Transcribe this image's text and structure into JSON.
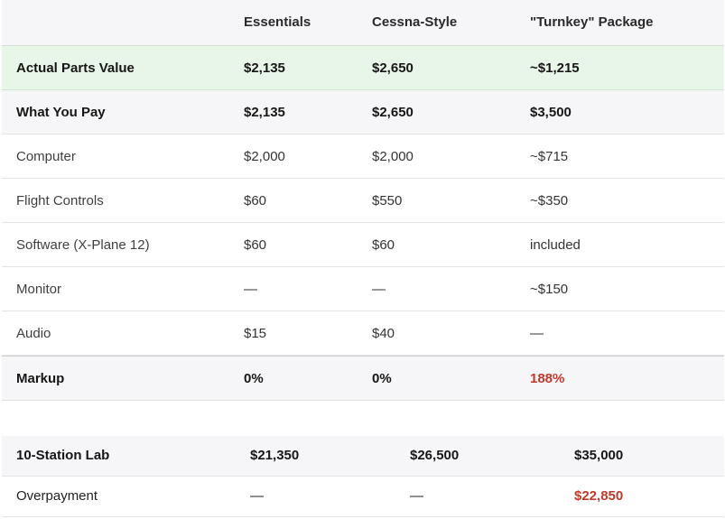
{
  "table1": {
    "headers": [
      "",
      "Essentials",
      "Cessna-Style",
      "\"Turnkey\" Package"
    ],
    "rows": [
      [
        "Actual Parts Value",
        "$2,135",
        "$2,650",
        "~$1,215"
      ],
      [
        "What You Pay",
        "$2,135",
        "$2,650",
        "$3,500"
      ],
      [
        "Computer",
        "$2,000",
        "$2,000",
        "~$715"
      ],
      [
        "Flight Controls",
        "$60",
        "$550",
        "~$350"
      ],
      [
        "Software (X-Plane 12)",
        "$60",
        "$60",
        "included"
      ],
      [
        "Monitor",
        "—",
        "—",
        "~$150"
      ],
      [
        "Audio",
        "$15",
        "$40",
        "—"
      ],
      [
        "Markup",
        "0%",
        "0%",
        "188%"
      ]
    ]
  },
  "table2": {
    "rows": [
      [
        "10-Station Lab",
        "$21,350",
        "$26,500",
        "$35,000"
      ],
      [
        "Overpayment",
        "—",
        "—",
        "$22,850"
      ]
    ]
  },
  "colors": {
    "highlight_row": "#e8f6e8",
    "alert_red": "#c0392b"
  }
}
